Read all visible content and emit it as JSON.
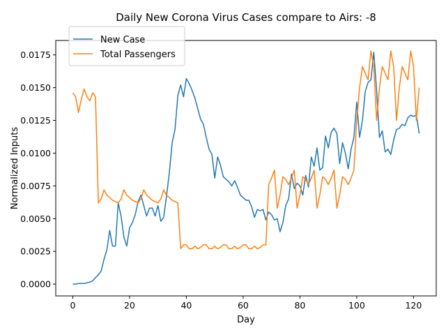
{
  "chart_data": {
    "type": "line",
    "title": "Daily New Corona Virus Cases compare to Airs: -8",
    "xlabel": "Day",
    "ylabel": "Normalized Inputs",
    "xlim": [
      -6,
      128
    ],
    "ylim": [
      -0.0009,
      0.0186
    ],
    "x_ticks": [
      0,
      20,
      40,
      60,
      80,
      100,
      120
    ],
    "x_tick_labels": [
      "0",
      "20",
      "40",
      "60",
      "80",
      "100",
      "120"
    ],
    "y_ticks": [
      0.0,
      0.0025,
      0.005,
      0.0075,
      0.01,
      0.0125,
      0.015,
      0.0175
    ],
    "y_tick_labels": [
      "0.0000",
      "0.0025",
      "0.0050",
      "0.0075",
      "0.0100",
      "0.0125",
      "0.0150",
      "0.0175"
    ],
    "grid": false,
    "legend_position": "top-left",
    "series": [
      {
        "name": "New Case",
        "color": "#1f77b4",
        "x_start": 0,
        "values": [
          0.0,
          0.0,
          5e-05,
          5e-05,
          5e-05,
          0.0001,
          0.00015,
          0.00025,
          0.0005,
          0.0007,
          0.001,
          0.0019,
          0.0026,
          0.0041,
          0.0029,
          0.0029,
          0.0062,
          0.0052,
          0.0036,
          0.0029,
          0.0043,
          0.0047,
          0.0053,
          0.0063,
          0.0068,
          0.006,
          0.0052,
          0.0058,
          0.0058,
          0.0052,
          0.006,
          0.0048,
          0.0051,
          0.0067,
          0.0085,
          0.0108,
          0.0118,
          0.0144,
          0.0152,
          0.0143,
          0.0157,
          0.0153,
          0.0148,
          0.0142,
          0.0134,
          0.0126,
          0.0122,
          0.0112,
          0.0103,
          0.0099,
          0.0081,
          0.0097,
          0.0091,
          0.0082,
          0.008,
          0.0078,
          0.0075,
          0.0079,
          0.0074,
          0.0068,
          0.0066,
          0.0064,
          0.0064,
          0.0059,
          0.0051,
          0.0057,
          0.0056,
          0.0057,
          0.0049,
          0.0055,
          0.0053,
          0.0049,
          0.005,
          0.004,
          0.0047,
          0.006,
          0.0065,
          0.0084,
          0.0073,
          0.0077,
          0.0075,
          0.0068,
          0.0083,
          0.0074,
          0.0097,
          0.009,
          0.0104,
          0.0087,
          0.0089,
          0.0113,
          0.0104,
          0.0116,
          0.0119,
          0.0115,
          0.0092,
          0.0108,
          0.01,
          0.0088,
          0.0103,
          0.0112,
          0.0139,
          0.0112,
          0.0125,
          0.0147,
          0.0154,
          0.0156,
          0.0177,
          0.0148,
          0.0112,
          0.0117,
          0.0101,
          0.0103,
          0.0099,
          0.011,
          0.0118,
          0.0119,
          0.0122,
          0.0121,
          0.0127,
          0.0129,
          0.0128,
          0.0129,
          0.0115
        ]
      },
      {
        "name": "Total Passengers",
        "color": "#ff7f0e",
        "x_start": 0,
        "values": [
          0.0146,
          0.0143,
          0.0131,
          0.0141,
          0.0149,
          0.0143,
          0.014,
          0.0146,
          0.0143,
          0.0062,
          0.0065,
          0.0072,
          0.0068,
          0.0066,
          0.0064,
          0.0063,
          0.0062,
          0.0065,
          0.0072,
          0.0068,
          0.0066,
          0.0064,
          0.0063,
          0.0062,
          0.0065,
          0.0072,
          0.0068,
          0.0066,
          0.0064,
          0.0063,
          0.0062,
          0.0065,
          0.0072,
          0.0068,
          0.0066,
          0.0064,
          0.0063,
          0.0062,
          0.0027,
          0.003,
          0.003,
          0.0027,
          0.0027,
          0.0029,
          0.0027,
          0.0028,
          0.003,
          0.003,
          0.0027,
          0.0027,
          0.0029,
          0.0027,
          0.0028,
          0.003,
          0.003,
          0.0027,
          0.0027,
          0.0029,
          0.0027,
          0.0028,
          0.003,
          0.003,
          0.0027,
          0.0027,
          0.0029,
          0.0027,
          0.0028,
          0.003,
          0.003,
          0.0076,
          0.0081,
          0.0087,
          0.0058,
          0.0068,
          0.0082,
          0.008,
          0.0076,
          0.0081,
          0.0087,
          0.0058,
          0.0068,
          0.0082,
          0.008,
          0.0076,
          0.0081,
          0.0087,
          0.0058,
          0.0068,
          0.0082,
          0.008,
          0.0076,
          0.0081,
          0.0087,
          0.0058,
          0.0068,
          0.0082,
          0.008,
          0.0076,
          0.0081,
          0.0087,
          0.0125,
          0.015,
          0.0166,
          0.0161,
          0.0156,
          0.0178,
          0.0166,
          0.0125,
          0.015,
          0.0166,
          0.0161,
          0.0156,
          0.0178,
          0.0166,
          0.0125,
          0.015,
          0.0166,
          0.0161,
          0.0156,
          0.0178,
          0.0166,
          0.0125,
          0.015
        ]
      }
    ]
  }
}
